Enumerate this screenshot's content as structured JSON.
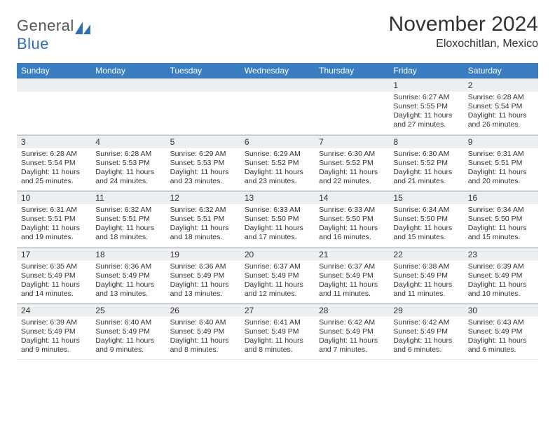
{
  "logo": {
    "word1": "General",
    "word2": "Blue",
    "word1_color": "#555555",
    "word2_color": "#2f6fb5",
    "icon_color": "#2f6fb5"
  },
  "title": "November 2024",
  "location": "Eloxochitlan, Mexico",
  "colors": {
    "header_bg": "#3a7ec1",
    "header_text": "#ffffff",
    "daynum_bg": "#eceef0",
    "border": "#b8c0c8",
    "text": "#333333"
  },
  "day_headers": [
    "Sunday",
    "Monday",
    "Tuesday",
    "Wednesday",
    "Thursday",
    "Friday",
    "Saturday"
  ],
  "weeks": [
    [
      null,
      null,
      null,
      null,
      null,
      {
        "n": "1",
        "sunrise": "Sunrise: 6:27 AM",
        "sunset": "Sunset: 5:55 PM",
        "daylight": "Daylight: 11 hours and 27 minutes."
      },
      {
        "n": "2",
        "sunrise": "Sunrise: 6:28 AM",
        "sunset": "Sunset: 5:54 PM",
        "daylight": "Daylight: 11 hours and 26 minutes."
      }
    ],
    [
      {
        "n": "3",
        "sunrise": "Sunrise: 6:28 AM",
        "sunset": "Sunset: 5:54 PM",
        "daylight": "Daylight: 11 hours and 25 minutes."
      },
      {
        "n": "4",
        "sunrise": "Sunrise: 6:28 AM",
        "sunset": "Sunset: 5:53 PM",
        "daylight": "Daylight: 11 hours and 24 minutes."
      },
      {
        "n": "5",
        "sunrise": "Sunrise: 6:29 AM",
        "sunset": "Sunset: 5:53 PM",
        "daylight": "Daylight: 11 hours and 23 minutes."
      },
      {
        "n": "6",
        "sunrise": "Sunrise: 6:29 AM",
        "sunset": "Sunset: 5:52 PM",
        "daylight": "Daylight: 11 hours and 23 minutes."
      },
      {
        "n": "7",
        "sunrise": "Sunrise: 6:30 AM",
        "sunset": "Sunset: 5:52 PM",
        "daylight": "Daylight: 11 hours and 22 minutes."
      },
      {
        "n": "8",
        "sunrise": "Sunrise: 6:30 AM",
        "sunset": "Sunset: 5:52 PM",
        "daylight": "Daylight: 11 hours and 21 minutes."
      },
      {
        "n": "9",
        "sunrise": "Sunrise: 6:31 AM",
        "sunset": "Sunset: 5:51 PM",
        "daylight": "Daylight: 11 hours and 20 minutes."
      }
    ],
    [
      {
        "n": "10",
        "sunrise": "Sunrise: 6:31 AM",
        "sunset": "Sunset: 5:51 PM",
        "daylight": "Daylight: 11 hours and 19 minutes."
      },
      {
        "n": "11",
        "sunrise": "Sunrise: 6:32 AM",
        "sunset": "Sunset: 5:51 PM",
        "daylight": "Daylight: 11 hours and 18 minutes."
      },
      {
        "n": "12",
        "sunrise": "Sunrise: 6:32 AM",
        "sunset": "Sunset: 5:51 PM",
        "daylight": "Daylight: 11 hours and 18 minutes."
      },
      {
        "n": "13",
        "sunrise": "Sunrise: 6:33 AM",
        "sunset": "Sunset: 5:50 PM",
        "daylight": "Daylight: 11 hours and 17 minutes."
      },
      {
        "n": "14",
        "sunrise": "Sunrise: 6:33 AM",
        "sunset": "Sunset: 5:50 PM",
        "daylight": "Daylight: 11 hours and 16 minutes."
      },
      {
        "n": "15",
        "sunrise": "Sunrise: 6:34 AM",
        "sunset": "Sunset: 5:50 PM",
        "daylight": "Daylight: 11 hours and 15 minutes."
      },
      {
        "n": "16",
        "sunrise": "Sunrise: 6:34 AM",
        "sunset": "Sunset: 5:50 PM",
        "daylight": "Daylight: 11 hours and 15 minutes."
      }
    ],
    [
      {
        "n": "17",
        "sunrise": "Sunrise: 6:35 AM",
        "sunset": "Sunset: 5:49 PM",
        "daylight": "Daylight: 11 hours and 14 minutes."
      },
      {
        "n": "18",
        "sunrise": "Sunrise: 6:36 AM",
        "sunset": "Sunset: 5:49 PM",
        "daylight": "Daylight: 11 hours and 13 minutes."
      },
      {
        "n": "19",
        "sunrise": "Sunrise: 6:36 AM",
        "sunset": "Sunset: 5:49 PM",
        "daylight": "Daylight: 11 hours and 13 minutes."
      },
      {
        "n": "20",
        "sunrise": "Sunrise: 6:37 AM",
        "sunset": "Sunset: 5:49 PM",
        "daylight": "Daylight: 11 hours and 12 minutes."
      },
      {
        "n": "21",
        "sunrise": "Sunrise: 6:37 AM",
        "sunset": "Sunset: 5:49 PM",
        "daylight": "Daylight: 11 hours and 11 minutes."
      },
      {
        "n": "22",
        "sunrise": "Sunrise: 6:38 AM",
        "sunset": "Sunset: 5:49 PM",
        "daylight": "Daylight: 11 hours and 11 minutes."
      },
      {
        "n": "23",
        "sunrise": "Sunrise: 6:39 AM",
        "sunset": "Sunset: 5:49 PM",
        "daylight": "Daylight: 11 hours and 10 minutes."
      }
    ],
    [
      {
        "n": "24",
        "sunrise": "Sunrise: 6:39 AM",
        "sunset": "Sunset: 5:49 PM",
        "daylight": "Daylight: 11 hours and 9 minutes."
      },
      {
        "n": "25",
        "sunrise": "Sunrise: 6:40 AM",
        "sunset": "Sunset: 5:49 PM",
        "daylight": "Daylight: 11 hours and 9 minutes."
      },
      {
        "n": "26",
        "sunrise": "Sunrise: 6:40 AM",
        "sunset": "Sunset: 5:49 PM",
        "daylight": "Daylight: 11 hours and 8 minutes."
      },
      {
        "n": "27",
        "sunrise": "Sunrise: 6:41 AM",
        "sunset": "Sunset: 5:49 PM",
        "daylight": "Daylight: 11 hours and 8 minutes."
      },
      {
        "n": "28",
        "sunrise": "Sunrise: 6:42 AM",
        "sunset": "Sunset: 5:49 PM",
        "daylight": "Daylight: 11 hours and 7 minutes."
      },
      {
        "n": "29",
        "sunrise": "Sunrise: 6:42 AM",
        "sunset": "Sunset: 5:49 PM",
        "daylight": "Daylight: 11 hours and 6 minutes."
      },
      {
        "n": "30",
        "sunrise": "Sunrise: 6:43 AM",
        "sunset": "Sunset: 5:49 PM",
        "daylight": "Daylight: 11 hours and 6 minutes."
      }
    ]
  ]
}
